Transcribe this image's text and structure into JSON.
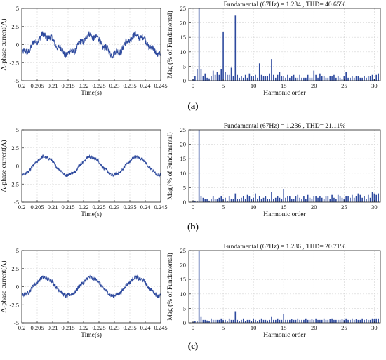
{
  "figure": {
    "panels": [
      {
        "label": "(a)",
        "fft_title": "Fundamental (67Hz) = 1.234 , THD= 40.65%"
      },
      {
        "label": "(b)",
        "fft_title": "Fundamental (67Hz) = 1.236 , THD= 21.11%"
      },
      {
        "label": "(c)",
        "fft_title": "Fundamental (67Hz) = 1.236 , THD= 20.71%"
      }
    ]
  },
  "chart_data": [
    {
      "panel": "(a)",
      "type": "line",
      "title": "",
      "xlabel": "Time(s)",
      "ylabel": "A-phase current(A)",
      "xlim": [
        0.2,
        0.245
      ],
      "ylim": [
        -5,
        5
      ],
      "xticks": [
        "0.2",
        "0.205",
        "0.21",
        "0.215",
        "0.22",
        "0.225",
        "0.23",
        "0.235",
        "0.24",
        "0.245"
      ],
      "yticks": [
        "5",
        "2.5",
        "0",
        "-2.5",
        "-5"
      ],
      "grid": true,
      "series": [
        {
          "frequency_hz": 67,
          "amplitude": 1.234,
          "noise": 0.45
        }
      ]
    },
    {
      "panel": "(a)",
      "type": "bar",
      "title": "Fundamental (67Hz) = 1.234 , THD= 40.65%",
      "xlabel": "Harmonic order",
      "ylabel": "Mag (% of Fundamental)",
      "xlim": [
        -0.7,
        31
      ],
      "ylim": [
        0,
        25
      ],
      "xticks": [
        "0",
        "5",
        "10",
        "15",
        "20",
        "25",
        "30"
      ],
      "yticks": [
        "0",
        "5",
        "10",
        "15",
        "20",
        "25"
      ],
      "grid": true,
      "x": [
        0,
        0.33,
        0.67,
        1,
        1.33,
        1.67,
        2,
        2.33,
        2.67,
        3,
        3.33,
        3.67,
        4,
        4.33,
        4.67,
        5,
        5.33,
        5.67,
        6,
        6.33,
        6.67,
        7,
        7.33,
        7.67,
        8,
        8.33,
        8.67,
        9,
        9.33,
        9.67,
        10,
        10.33,
        10.67,
        11,
        11.33,
        11.67,
        12,
        12.33,
        12.67,
        13,
        13.33,
        13.67,
        14,
        14.33,
        14.67,
        15,
        15.33,
        15.67,
        16,
        16.33,
        16.67,
        17,
        17.33,
        17.67,
        18,
        18.33,
        18.67,
        19,
        19.33,
        19.67,
        20,
        20.33,
        20.67,
        21,
        21.33,
        21.67,
        22,
        22.33,
        22.67,
        23,
        23.33,
        23.67,
        24,
        24.33,
        24.67,
        25,
        25.33,
        25.67,
        26,
        26.33,
        26.67,
        27,
        27.33,
        27.67,
        28,
        28.33,
        28.67,
        29,
        29.33,
        29.67,
        30,
        30.33,
        30.67
      ],
      "values": [
        0.5,
        1.5,
        4,
        25,
        4,
        1.5,
        2.5,
        1,
        0.8,
        1.5,
        3.5,
        2,
        3,
        2,
        4,
        17,
        3,
        2,
        2,
        4.5,
        1.5,
        22.5,
        2,
        1,
        1.5,
        1,
        2,
        1,
        2.5,
        1.5,
        1.5,
        2,
        1,
        6,
        2,
        1.5,
        1.5,
        1.5,
        2.5,
        7.5,
        2,
        1,
        2,
        3,
        1.5,
        1.5,
        1,
        2,
        1,
        1.5,
        2,
        1,
        1,
        2,
        1,
        1,
        1,
        2,
        1,
        1,
        3.5,
        2,
        1,
        2.5,
        1.5,
        1.5,
        1,
        1,
        1.5,
        1.5,
        2,
        1,
        1.5,
        1,
        0.5,
        1.5,
        3,
        1,
        1,
        1.5,
        1,
        1.5,
        1.5,
        1,
        1,
        1.5,
        1,
        1.5,
        1.5,
        2,
        0.5,
        2,
        2.5
      ]
    },
    {
      "panel": "(b)",
      "type": "line",
      "title": "",
      "xlabel": "Time(s)",
      "ylabel": "A-phase current(A)",
      "xlim": [
        0.2,
        0.245
      ],
      "ylim": [
        -5,
        5
      ],
      "xticks": [
        "0.2",
        "0.205",
        "0.21",
        "0.215",
        "0.22",
        "0.225",
        "0.23",
        "0.235",
        "0.24",
        "0.245"
      ],
      "yticks": [
        "5",
        "2.5",
        "0",
        "-2.5",
        "-5"
      ],
      "grid": true,
      "series": [
        {
          "frequency_hz": 67,
          "amplitude": 1.236,
          "noise": 0.22
        }
      ]
    },
    {
      "panel": "(b)",
      "type": "bar",
      "title": "Fundamental (67Hz) = 1.236 , THD= 21.11%",
      "xlabel": "Harmonic order",
      "ylabel": "Mag (% of Fundamental)",
      "xlim": [
        -0.7,
        31
      ],
      "ylim": [
        0,
        25
      ],
      "xticks": [
        "0",
        "5",
        "10",
        "15",
        "20",
        "25",
        "30"
      ],
      "yticks": [
        "0",
        "5",
        "10",
        "15",
        "20",
        "25"
      ],
      "grid": true,
      "x": [
        0,
        0.33,
        0.67,
        1,
        1.33,
        1.67,
        2,
        2.33,
        2.67,
        3,
        3.33,
        3.67,
        4,
        4.33,
        4.67,
        5,
        5.33,
        5.67,
        6,
        6.33,
        6.67,
        7,
        7.33,
        7.67,
        8,
        8.33,
        8.67,
        9,
        9.33,
        9.67,
        10,
        10.33,
        10.67,
        11,
        11.33,
        11.67,
        12,
        12.33,
        12.67,
        13,
        13.33,
        13.67,
        14,
        14.33,
        14.67,
        15,
        15.33,
        15.67,
        16,
        16.33,
        16.67,
        17,
        17.33,
        17.67,
        18,
        18.33,
        18.67,
        19,
        19.33,
        19.67,
        20,
        20.33,
        20.67,
        21,
        21.33,
        21.67,
        22,
        22.33,
        22.67,
        23,
        23.33,
        23.67,
        24,
        24.33,
        24.67,
        25,
        25.33,
        25.67,
        26,
        26.33,
        26.67,
        27,
        27.33,
        27.67,
        28,
        28.33,
        28.67,
        29,
        29.33,
        29.67,
        30,
        30.33,
        30.67
      ],
      "values": [
        0.3,
        0.5,
        0.5,
        25,
        2,
        1.5,
        1,
        1,
        0.5,
        1,
        2,
        1,
        1,
        1.5,
        2,
        1,
        1.5,
        0.5,
        2,
        1,
        1,
        3,
        1,
        1,
        1.5,
        2,
        1,
        2.5,
        2,
        1,
        1.5,
        3,
        1,
        2,
        1,
        1.5,
        2,
        1,
        1,
        3.5,
        1,
        1.5,
        2,
        1.5,
        1,
        4.5,
        1.5,
        2,
        2,
        1,
        1,
        2,
        2.5,
        1.5,
        1,
        2,
        1,
        2.5,
        1.5,
        1,
        2,
        2,
        1.5,
        2,
        1.5,
        1,
        2,
        2,
        1,
        2.5,
        1.5,
        1,
        2.5,
        2,
        1.5,
        1,
        2,
        2,
        1.5,
        2.5,
        1.5,
        2,
        3,
        2.5,
        1.5,
        2,
        1,
        2.5,
        1.5,
        3.5,
        3,
        2.5,
        3
      ]
    },
    {
      "panel": "(c)",
      "type": "line",
      "title": "",
      "xlabel": "Time(s)",
      "ylabel": "A-phase current(A)",
      "xlim": [
        0.2,
        0.245
      ],
      "ylim": [
        -5,
        5
      ],
      "xticks": [
        "0.2",
        "0.205",
        "0.21",
        "0.215",
        "0.22",
        "0.225",
        "0.23",
        "0.235",
        "0.24",
        "0.245"
      ],
      "yticks": [
        "5",
        "2.5",
        "0",
        "-2.5",
        "-5"
      ],
      "grid": true,
      "series": [
        {
          "frequency_hz": 67,
          "amplitude": 1.236,
          "noise": 0.28
        }
      ]
    },
    {
      "panel": "(c)",
      "type": "bar",
      "title": "Fundamental (67Hz) = 1.236 , THD= 20.71%",
      "xlabel": "Harmonic order",
      "ylabel": "Mag (% of Fundamental)",
      "xlim": [
        -0.7,
        31
      ],
      "ylim": [
        0,
        25
      ],
      "xticks": [
        "0",
        "5",
        "10",
        "15",
        "20",
        "25",
        "30"
      ],
      "yticks": [
        "0",
        "5",
        "10",
        "15",
        "20",
        "25"
      ],
      "grid": true,
      "x": [
        0,
        0.33,
        0.67,
        1,
        1.33,
        1.67,
        2,
        2.33,
        2.67,
        3,
        3.33,
        3.67,
        4,
        4.33,
        4.67,
        5,
        5.33,
        5.67,
        6,
        6.33,
        6.67,
        7,
        7.33,
        7.67,
        8,
        8.33,
        8.67,
        9,
        9.33,
        9.67,
        10,
        10.33,
        10.67,
        11,
        11.33,
        11.67,
        12,
        12.33,
        12.67,
        13,
        13.33,
        13.67,
        14,
        14.33,
        14.67,
        15,
        15.33,
        15.67,
        16,
        16.33,
        16.67,
        17,
        17.33,
        17.67,
        18,
        18.33,
        18.67,
        19,
        19.33,
        19.67,
        20,
        20.33,
        20.67,
        21,
        21.33,
        21.67,
        22,
        22.33,
        22.67,
        23,
        23.33,
        23.67,
        24,
        24.33,
        24.67,
        25,
        25.33,
        25.67,
        26,
        26.33,
        26.67,
        27,
        27.33,
        27.67,
        28,
        28.33,
        28.67,
        29,
        29.33,
        29.67,
        30,
        30.33,
        30.67
      ],
      "values": [
        0.3,
        0.5,
        0.5,
        25,
        2,
        1,
        1,
        0.8,
        0.5,
        1.5,
        1,
        1,
        1,
        1,
        1.5,
        1,
        1,
        0.5,
        1.5,
        1,
        1,
        4,
        1,
        0.5,
        1,
        1.5,
        0.5,
        1,
        1,
        0.5,
        1.5,
        1,
        0.5,
        1,
        1.5,
        1,
        1,
        0.8,
        1,
        2,
        1,
        1,
        1.5,
        1,
        1,
        3,
        1,
        1,
        1,
        1.2,
        1,
        1,
        1.5,
        1,
        1,
        1,
        1.5,
        1,
        1,
        1.2,
        1,
        1.5,
        1,
        1,
        1,
        1.5,
        1,
        1,
        1.2,
        1.5,
        1,
        1,
        1,
        1,
        1.2,
        1,
        1.5,
        1,
        1,
        1.5,
        1,
        1.2,
        1,
        1,
        1.5,
        1,
        1.2,
        1,
        1,
        1.5,
        1.2,
        1.5,
        1.5
      ]
    }
  ]
}
